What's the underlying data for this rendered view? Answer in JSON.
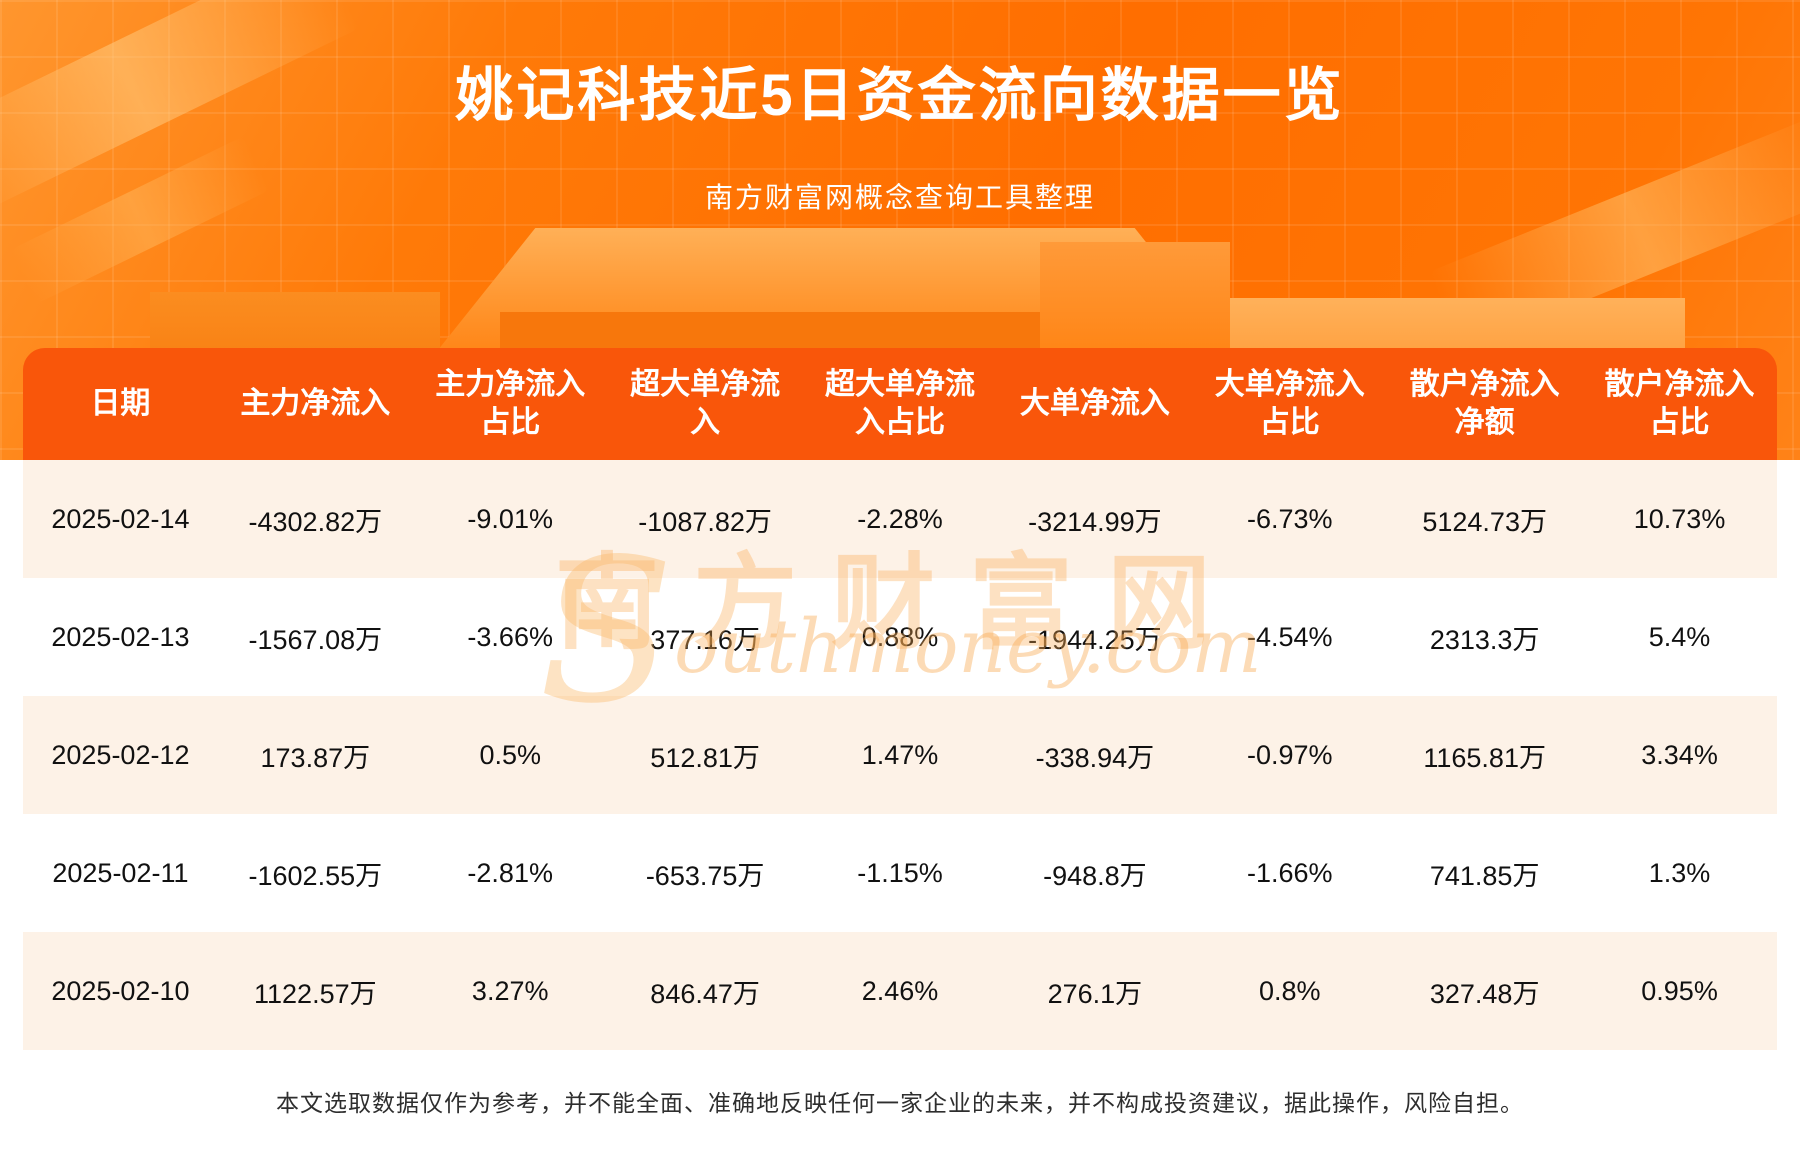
{
  "page": {
    "title": "姚记科技近5日资金流向数据一览",
    "subtitle": "南方财富网概念查询工具整理",
    "disclaimer": "本文选取数据仅作为参考，并不能全面、准确地反映任何一家企业的未来，并不构成投资建议，据此操作，风险自担。"
  },
  "watermark": {
    "cn": "南方财富网",
    "initial": "S",
    "en": "outhmoney.com"
  },
  "colors": {
    "background_orange": "#ff6e00",
    "table_header": "#f9560a",
    "row_cream": "#fdf2e7",
    "row_white": "#ffffff",
    "title_text": "#ffffff",
    "cell_text": "#111111",
    "watermark": "#f9a84b"
  },
  "table": {
    "headers": [
      {
        "key": "date",
        "lines": [
          "日期"
        ]
      },
      {
        "key": "main-net-inflow",
        "lines": [
          "主力净流入"
        ]
      },
      {
        "key": "main-net-inflow-pct",
        "lines": [
          "主力净流入",
          "占比"
        ]
      },
      {
        "key": "xlarge-order-net-inflow",
        "lines": [
          "超大单净流",
          "入"
        ]
      },
      {
        "key": "xlarge-order-net-inflow-pct",
        "lines": [
          "超大单净流",
          "入占比"
        ]
      },
      {
        "key": "large-order-net-inflow",
        "lines": [
          "大单净流入"
        ]
      },
      {
        "key": "large-order-net-inflow-pct",
        "lines": [
          "大单净流入",
          "占比"
        ]
      },
      {
        "key": "retail-net-inflow",
        "lines": [
          "散户净流入",
          "净额"
        ]
      },
      {
        "key": "retail-net-inflow-pct",
        "lines": [
          "散户净流入",
          "占比"
        ]
      }
    ],
    "rows": [
      [
        "2025-02-14",
        "-4302.82万",
        "-9.01%",
        "-1087.82万",
        "-2.28%",
        "-3214.99万",
        "-6.73%",
        "5124.73万",
        "10.73%"
      ],
      [
        "2025-02-13",
        "-1567.08万",
        "-3.66%",
        "377.16万",
        "0.88%",
        "-1944.25万",
        "-4.54%",
        "2313.3万",
        "5.4%"
      ],
      [
        "2025-02-12",
        "173.87万",
        "0.5%",
        "512.81万",
        "1.47%",
        "-338.94万",
        "-0.97%",
        "1165.81万",
        "3.34%"
      ],
      [
        "2025-02-11",
        "-1602.55万",
        "-2.81%",
        "-653.75万",
        "-1.15%",
        "-948.8万",
        "-1.66%",
        "741.85万",
        "1.3%"
      ],
      [
        "2025-02-10",
        "1122.57万",
        "3.27%",
        "846.47万",
        "2.46%",
        "276.1万",
        "0.8%",
        "327.48万",
        "0.95%"
      ]
    ]
  },
  "chart_data": {
    "type": "table",
    "title": "姚记科技近5日资金流向数据一览",
    "subtitle": "南方财富网概念查询工具整理",
    "columns": [
      "日期",
      "主力净流入",
      "主力净流入占比",
      "超大单净流入",
      "超大单净流入占比",
      "大单净流入",
      "大单净流入占比",
      "散户净流入净额",
      "散户净流入占比"
    ],
    "rows": [
      [
        "2025-02-14",
        "-4302.82万",
        "-9.01%",
        "-1087.82万",
        "-2.28%",
        "-3214.99万",
        "-6.73%",
        "5124.73万",
        "10.73%"
      ],
      [
        "2025-02-13",
        "-1567.08万",
        "-3.66%",
        "377.16万",
        "0.88%",
        "-1944.25万",
        "-4.54%",
        "2313.3万",
        "5.4%"
      ],
      [
        "2025-02-12",
        "173.87万",
        "0.5%",
        "512.81万",
        "1.47%",
        "-338.94万",
        "-0.97%",
        "1165.81万",
        "3.34%"
      ],
      [
        "2025-02-11",
        "-1602.55万",
        "-2.81%",
        "-653.75万",
        "-1.15%",
        "-948.8万",
        "-1.66%",
        "741.85万",
        "1.3%"
      ],
      [
        "2025-02-10",
        "1122.57万",
        "3.27%",
        "846.47万",
        "2.46%",
        "276.1万",
        "0.8%",
        "327.48万",
        "0.95%"
      ]
    ]
  }
}
